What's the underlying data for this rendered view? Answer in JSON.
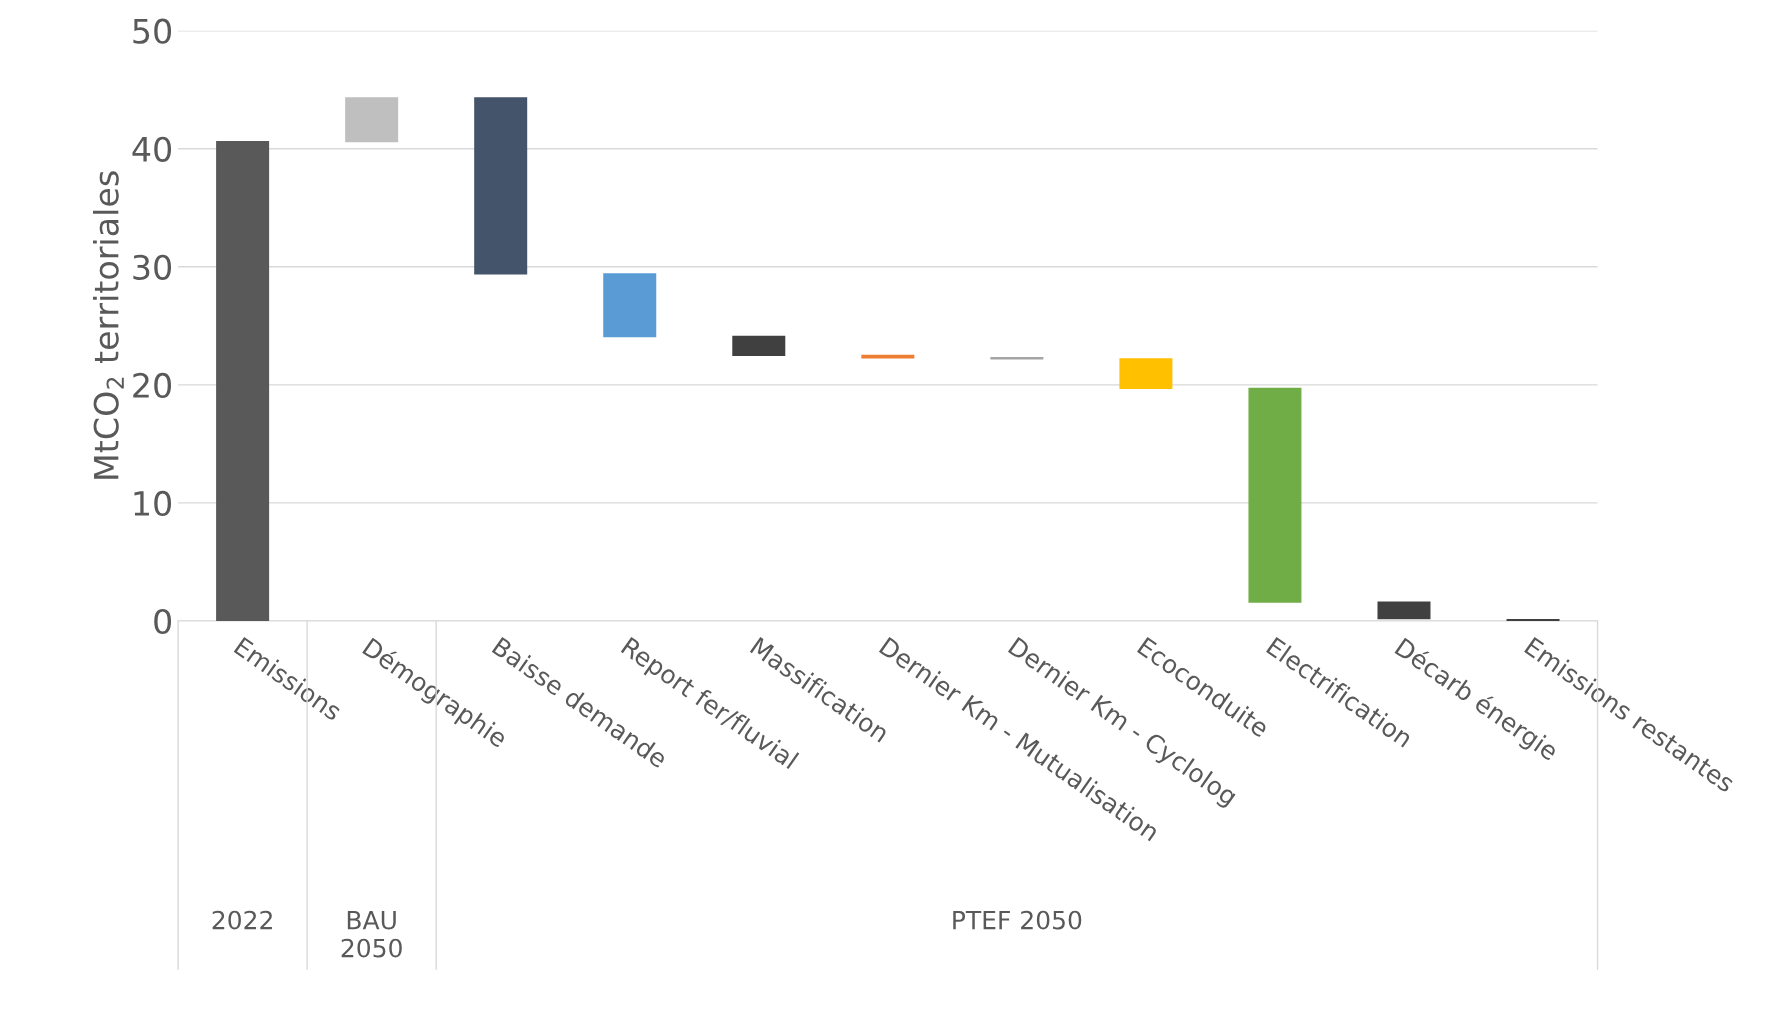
{
  "chart_data": {
    "type": "bar",
    "ylabel": "MtCO$_{2}$ territoriales",
    "categories": [
      "Emissions",
      "Démographie",
      "Baisse demande",
      "Report fer/fluvial",
      "Massification",
      "Dernier Km - Mutualisation",
      "Dernier Km - Cyclolog",
      "Ecoconduite",
      "Electrification",
      "Décarb énergie",
      "Emissions restantes"
    ],
    "values": [
      40.6,
      3.7,
      -14.9,
      -5.3,
      -1.6,
      -0.2,
      -0.1,
      -2.5,
      -18.1,
      -1.4,
      0.1
    ],
    "base": [
      0,
      40.6,
      44.3,
      29.4,
      24.1,
      22.5,
      22.3,
      22.2,
      19.7,
      1.6,
      0
    ],
    "colors": [
      "#595959",
      "#bfbfbf",
      "#44546a",
      "#5b9bd5",
      "#404040",
      "#ed7d31",
      "#a5a5a5",
      "#ffc000",
      "#70ad47",
      "#404040",
      "#404040"
    ],
    "ylim": [
      0,
      50
    ],
    "yticks": [
      0,
      10,
      20,
      30,
      40,
      50
    ],
    "grid": "y",
    "annotations": [
      "2022",
      "BAU\n2050",
      "PTEF 2050"
    ]
  }
}
